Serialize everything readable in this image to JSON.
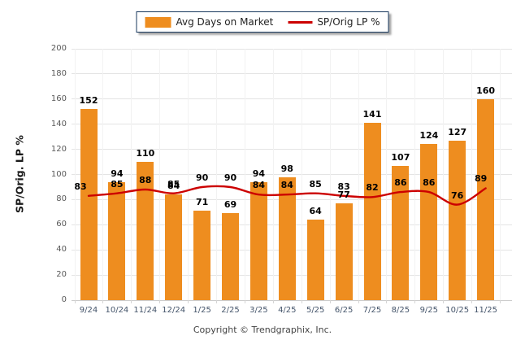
{
  "legend": {
    "bar_label": "Avg Days on Market",
    "line_label": "SP/Orig LP %"
  },
  "footer": {
    "copyright": "Copyright © Trendgraphix, Inc."
  },
  "colors": {
    "bar": "#EE8D1F",
    "line": "#CC0000",
    "legend_border": "#17375D",
    "grid": "#E4E4E4",
    "baseline": "#CDCDCD",
    "x_tick_text": "#44546A",
    "y_tick_text": "#595959",
    "data_label_text": "#000000"
  },
  "chart_data": {
    "type": "bar",
    "subtype": "bar-line-combo",
    "title": "",
    "xlabel": "",
    "ylabel": "SP/Orig. LP %",
    "ylim": [
      0,
      200
    ],
    "ytick_step": 20,
    "grid": "horizontal",
    "legend_position": "top-center",
    "data_labels": true,
    "categories": [
      "9/24",
      "10/24",
      "11/24",
      "12/24",
      "1/25",
      "2/25",
      "3/25",
      "4/25",
      "5/25",
      "6/25",
      "7/25",
      "8/25",
      "9/25",
      "10/25",
      "11/25"
    ],
    "series": [
      {
        "name": "Avg Days on Market",
        "type": "bar",
        "color": "#EE8D1F",
        "values": [
          152,
          94,
          110,
          84,
          71,
          69,
          94,
          98,
          64,
          77,
          141,
          107,
          124,
          127,
          160
        ]
      },
      {
        "name": "SP/Orig LP %",
        "type": "line",
        "color": "#CC0000",
        "values": [
          83,
          85,
          88,
          85,
          90,
          90,
          84,
          84,
          85,
          83,
          82,
          86,
          86,
          76,
          89
        ]
      }
    ]
  }
}
